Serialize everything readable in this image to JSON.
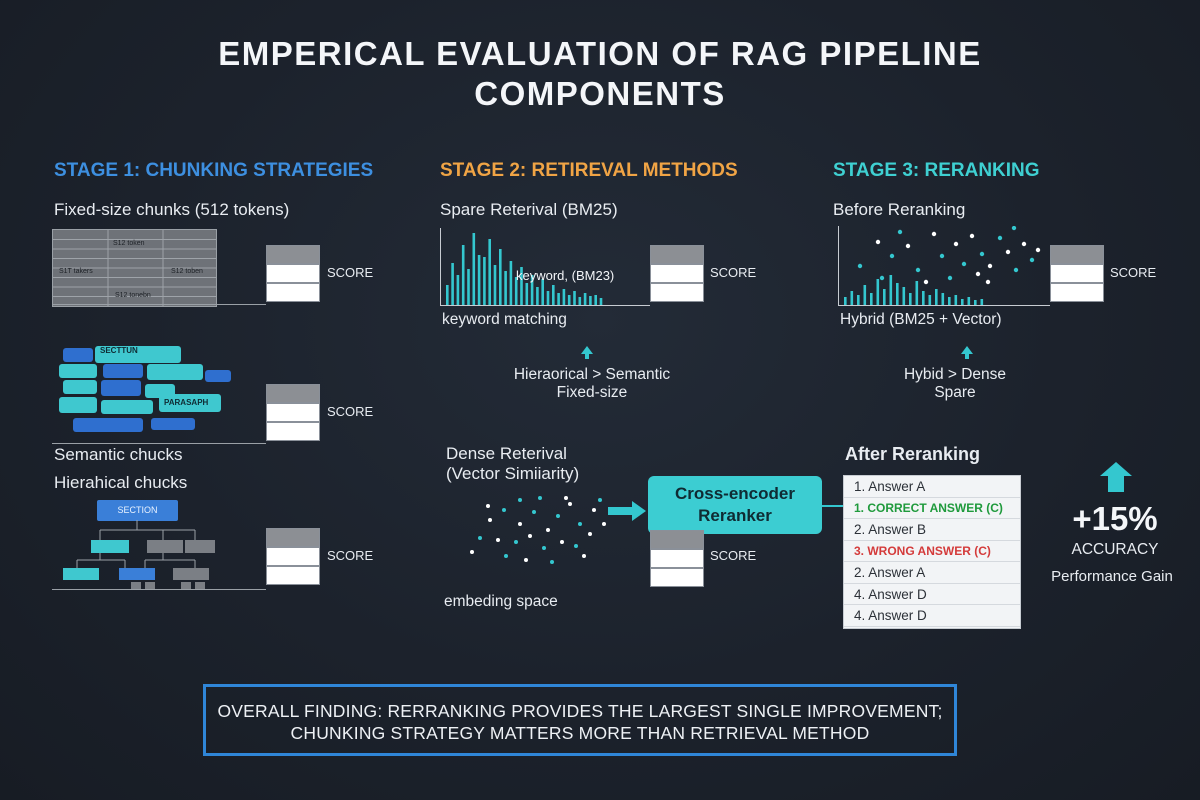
{
  "title": {
    "line1": "EMPERICAL EVALUATION OF RAG PIPELINE",
    "line2": "COMPONENTS"
  },
  "colors": {
    "stage1": "#3d8fe0",
    "stage2": "#f0a445",
    "stage3": "#3fd0d2",
    "accent": "#34c7cf",
    "correct": "#1f9a3c",
    "wrong": "#d43b3b",
    "footer_border": "#2f86d8"
  },
  "stage1": {
    "heading": "STAGE 1: CHUNKING STRATEGIES",
    "fixed_label": "Fixed-size chunks (512 tokens)",
    "fixed_cells": [
      "S12 token",
      "S1T takers",
      "S12 toben",
      "S12 tonebn"
    ],
    "semantic_tags": [
      "SECTTUN",
      "PARASAPH"
    ],
    "semantic_label": "Semantic chucks",
    "hier_label": "Hierahical chucks",
    "hier_section": "SECTION"
  },
  "stage2": {
    "heading": "STAGE 2: RETIREVAL METHODS",
    "sparse_label": "Spare Reterival (BM25)",
    "keyword_overlay": "keyword, (BM23)",
    "keyword_caption": "keyword matching",
    "ranking_line1": "Hieraorical > Semantic",
    "ranking_line2": "Fixed-size",
    "dense_line1": "Dense Reterival",
    "dense_line2": "(Vector Simiiarity)",
    "embed_caption": "embeding space",
    "cross_encoder_line1": "Cross-encoder",
    "cross_encoder_line2": "Reranker"
  },
  "stage3": {
    "heading": "STAGE 3: RERANKING",
    "before_label": "Before Reranking",
    "hybrid_label": "Hybrid (BM25 + Vector)",
    "ranking_line1": "Hybid > Dense",
    "ranking_line2": "Spare",
    "after_label": "After Reranking",
    "answers": [
      {
        "text": "1.   Answer A",
        "kind": "normal"
      },
      {
        "text": "1.  CORRECT ANSWER (C)",
        "kind": "correct"
      },
      {
        "text": "2.   Answer B",
        "kind": "normal"
      },
      {
        "text": "3.  WRONG ANSWER (C)",
        "kind": "wrong"
      },
      {
        "text": "2.   Answer A",
        "kind": "normal"
      },
      {
        "text": "4.   Answer D",
        "kind": "normal"
      },
      {
        "text": "4.   Answer D",
        "kind": "normal"
      }
    ],
    "gain_value": "+15%",
    "gain_unit": "ACCURACY",
    "gain_caption": "Performance Gain"
  },
  "score_label": "SCORE",
  "footer": {
    "line1": "OVERALL FINDING: RERRANKING PROVIDES THE LARGEST SINGLE IMPROVEMENT;",
    "line2": "CHUNKING STRATEGY MATTERS MORE THAN RETRIEVAL METHOD"
  }
}
